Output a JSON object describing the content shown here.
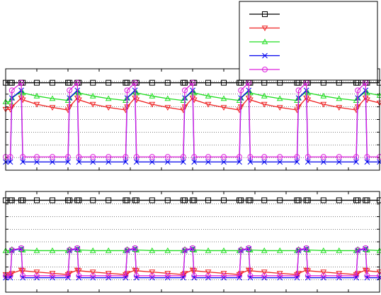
{
  "chart_data": [
    {
      "type": "line",
      "legend": "upper right",
      "grid": true,
      "xlim": [
        0,
        12
      ],
      "xticks": [
        0,
        1,
        2,
        3,
        4,
        5,
        6,
        7,
        8,
        9,
        10,
        11,
        12
      ],
      "ylim": [
        0,
        8
      ],
      "yticks": [
        0,
        1,
        2,
        3,
        4,
        5,
        6,
        7,
        8
      ],
      "x": [
        0,
        0.15,
        0.2,
        0.5,
        0.55,
        1,
        1.5,
        2,
        2.05,
        2.3,
        2.35,
        2.8,
        3.3,
        3.85,
        3.9,
        4.15,
        4.2,
        4.7,
        5.2,
        5.7,
        5.75,
        6,
        6.05,
        6.5,
        7,
        7.5,
        7.55,
        7.8,
        7.85,
        8.3,
        8.8,
        9.35,
        9.4,
        9.65,
        9.7,
        10.2,
        10.7,
        11.25,
        11.3,
        11.55,
        11.6,
        12
      ],
      "series": [
        {
          "color": "#000000",
          "marker": "square",
          "values": [
            6.9,
            6.9,
            6.9,
            6.9,
            6.9,
            6.9,
            6.9,
            6.9,
            6.9,
            6.9,
            6.9,
            6.9,
            6.9,
            6.9,
            6.9,
            6.9,
            6.9,
            6.9,
            6.9,
            6.9,
            6.9,
            6.9,
            6.9,
            6.9,
            6.9,
            6.9,
            6.9,
            6.9,
            6.9,
            6.9,
            6.9,
            6.9,
            6.9,
            6.9,
            6.9,
            6.9,
            6.9,
            6.9,
            6.9,
            6.9,
            6.9,
            6.9
          ]
        },
        {
          "color": "#ee2020",
          "marker": "triangle-down",
          "values": [
            4.8,
            4.8,
            5,
            5.7,
            5.55,
            5.2,
            4.95,
            4.75,
            5,
            5.7,
            5.55,
            5.2,
            4.95,
            4.75,
            5,
            5.7,
            5.55,
            5.2,
            4.95,
            4.75,
            5,
            5.7,
            5.55,
            5.2,
            4.95,
            4.75,
            5,
            5.7,
            5.55,
            5.2,
            4.95,
            4.75,
            5,
            5.7,
            5.55,
            5.2,
            4.95,
            4.75,
            5,
            5.7,
            5.55,
            5.3
          ]
        },
        {
          "color": "#22dd22",
          "marker": "triangle-up",
          "values": [
            5.4,
            5.4,
            5.7,
            6.2,
            6.1,
            5.85,
            5.65,
            5.5,
            5.7,
            6.2,
            6.1,
            5.85,
            5.65,
            5.5,
            5.7,
            6.2,
            6.1,
            5.85,
            5.65,
            5.5,
            5.7,
            6.2,
            6.1,
            5.85,
            5.65,
            5.5,
            5.7,
            6.2,
            6.1,
            5.85,
            5.65,
            5.5,
            5.7,
            6.2,
            6.1,
            5.85,
            5.65,
            5.5,
            5.7,
            6.2,
            6.1,
            5.9
          ]
        },
        {
          "color": "#0000ee",
          "marker": "cross",
          "values": [
            0.65,
            0.65,
            5.7,
            6.3,
            0.65,
            0.65,
            0.65,
            0.65,
            5.7,
            6.3,
            0.65,
            0.65,
            0.65,
            0.65,
            5.7,
            6.3,
            0.65,
            0.65,
            0.65,
            0.65,
            5.7,
            6.3,
            0.65,
            0.65,
            0.65,
            0.65,
            5.7,
            6.3,
            0.65,
            0.65,
            0.65,
            0.65,
            5.7,
            6.3,
            0.65,
            0.65,
            0.65,
            0.65,
            5.7,
            6.3,
            0.65,
            0.65
          ]
        },
        {
          "color": "#dd22dd",
          "marker": "circle",
          "values": [
            1.05,
            1.05,
            6.3,
            6.9,
            1.05,
            1.05,
            1.05,
            1.05,
            6.3,
            6.9,
            1.05,
            1.05,
            1.05,
            1.05,
            6.3,
            6.9,
            1.05,
            1.05,
            1.05,
            1.05,
            6.3,
            6.9,
            1.05,
            1.05,
            1.05,
            1.05,
            6.3,
            6.9,
            1.05,
            1.05,
            1.05,
            1.05,
            6.3,
            6.9,
            1.05,
            1.05,
            1.05,
            1.05,
            6.3,
            6.9,
            1.05,
            1.05
          ]
        }
      ]
    },
    {
      "type": "line",
      "grid": true,
      "xlim": [
        0,
        12
      ],
      "xticks": [
        0,
        1,
        2,
        3,
        4,
        5,
        6,
        7,
        8,
        9,
        10,
        11,
        12
      ],
      "ylim": [
        0,
        8
      ],
      "yticks": [
        0,
        1,
        2,
        3,
        4,
        5,
        6,
        7,
        8
      ],
      "x": [
        0,
        0.15,
        0.2,
        0.5,
        0.55,
        1,
        1.5,
        2,
        2.05,
        2.3,
        2.35,
        2.8,
        3.3,
        3.85,
        3.9,
        4.15,
        4.2,
        4.7,
        5.2,
        5.7,
        5.75,
        6,
        6.05,
        6.5,
        7,
        7.5,
        7.55,
        7.8,
        7.85,
        8.3,
        8.8,
        9.35,
        9.4,
        9.65,
        9.7,
        10.2,
        10.7,
        11.25,
        11.3,
        11.55,
        11.6,
        12
      ],
      "series": [
        {
          "color": "#000000",
          "marker": "square",
          "values": [
            7.3,
            7.3,
            7.3,
            7.3,
            7.3,
            7.3,
            7.3,
            7.3,
            7.3,
            7.3,
            7.3,
            7.3,
            7.3,
            7.3,
            7.3,
            7.3,
            7.3,
            7.3,
            7.3,
            7.3,
            7.3,
            7.3,
            7.3,
            7.3,
            7.3,
            7.3,
            7.3,
            7.3,
            7.3,
            7.3,
            7.3,
            7.3,
            7.3,
            7.3,
            7.3,
            7.3,
            7.3,
            7.3,
            7.3,
            7.3,
            7.3,
            7.3
          ]
        },
        {
          "color": "#ee2020",
          "marker": "triangle-down",
          "values": [
            1.4,
            1.4,
            1.5,
            1.75,
            1.7,
            1.6,
            1.5,
            1.4,
            1.5,
            1.75,
            1.7,
            1.6,
            1.5,
            1.4,
            1.5,
            1.75,
            1.7,
            1.6,
            1.5,
            1.4,
            1.5,
            1.75,
            1.7,
            1.6,
            1.5,
            1.4,
            1.5,
            1.75,
            1.7,
            1.6,
            1.5,
            1.4,
            1.5,
            1.75,
            1.7,
            1.6,
            1.5,
            1.4,
            1.5,
            1.75,
            1.7,
            1.6
          ]
        },
        {
          "color": "#22dd22",
          "marker": "triangle-up",
          "values": [
            3.3,
            3.3,
            3.4,
            3.4,
            3.35,
            3.3,
            3.3,
            3.3,
            3.4,
            3.4,
            3.35,
            3.3,
            3.3,
            3.3,
            3.4,
            3.4,
            3.35,
            3.3,
            3.3,
            3.3,
            3.4,
            3.4,
            3.35,
            3.3,
            3.3,
            3.3,
            3.4,
            3.4,
            3.35,
            3.3,
            3.3,
            3.3,
            3.4,
            3.4,
            3.35,
            3.3,
            3.3,
            3.3,
            3.4,
            3.4,
            3.35,
            3.3
          ]
        },
        {
          "color": "#0000ee",
          "marker": "cross",
          "values": [
            1.15,
            1.15,
            3.3,
            3.45,
            1.15,
            1.15,
            1.15,
            1.15,
            3.3,
            3.45,
            1.15,
            1.15,
            1.15,
            1.15,
            3.3,
            3.45,
            1.15,
            1.15,
            1.15,
            1.15,
            3.3,
            3.45,
            1.15,
            1.15,
            1.15,
            1.15,
            3.3,
            3.45,
            1.15,
            1.15,
            1.15,
            1.15,
            3.3,
            3.45,
            1.15,
            1.15,
            1.15,
            1.15,
            3.3,
            3.45,
            1.15,
            1.15
          ]
        },
        {
          "color": "#dd22dd",
          "marker": "circle",
          "values": [
            1.3,
            1.3,
            3.35,
            3.5,
            1.3,
            1.3,
            1.3,
            1.3,
            3.35,
            3.5,
            1.3,
            1.3,
            1.3,
            1.3,
            3.35,
            3.5,
            1.3,
            1.3,
            1.3,
            1.3,
            3.35,
            3.5,
            1.3,
            1.3,
            1.3,
            1.3,
            3.35,
            3.5,
            1.3,
            1.3,
            1.3,
            1.3,
            3.35,
            3.5,
            1.3,
            1.3,
            1.3,
            1.3,
            3.35,
            3.5,
            1.3,
            1.3
          ]
        }
      ]
    }
  ]
}
